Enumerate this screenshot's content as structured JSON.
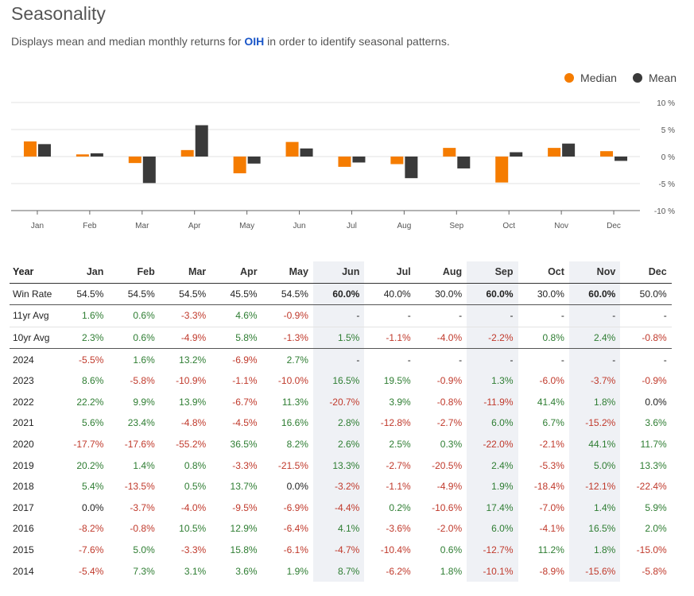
{
  "header": {
    "title": "Seasonality",
    "subtitle_prefix": "Displays mean and median monthly returns for ",
    "ticker": "OIH",
    "subtitle_suffix": " in order to identify seasonal patterns."
  },
  "legend": {
    "median_label": "Median",
    "mean_label": "Mean",
    "median_color": "#f57c00",
    "mean_color": "#3a3a3a"
  },
  "chart_data": {
    "type": "bar",
    "categories": [
      "Jan",
      "Feb",
      "Mar",
      "Apr",
      "May",
      "Jun",
      "Jul",
      "Aug",
      "Sep",
      "Oct",
      "Nov",
      "Dec"
    ],
    "series": [
      {
        "name": "Median",
        "color": "#f57c00",
        "values": [
          2.8,
          0.4,
          -1.2,
          1.2,
          -3.1,
          2.7,
          -1.9,
          -1.4,
          1.6,
          -4.8,
          1.6,
          1.0
        ]
      },
      {
        "name": "Mean",
        "color": "#3a3a3a",
        "values": [
          2.3,
          0.6,
          -4.9,
          5.8,
          -1.3,
          1.5,
          -1.1,
          -4.0,
          -2.2,
          0.8,
          2.4,
          -0.8
        ]
      }
    ],
    "y_ticks": [
      "10 %",
      "5 %",
      "0 %",
      "-5 %",
      "-10 %"
    ],
    "y_tick_values": [
      10,
      5,
      0,
      -5,
      -10
    ],
    "ylim": [
      -10,
      10
    ],
    "grid": true,
    "legend_position": "top-right"
  },
  "table": {
    "columns": [
      "Year",
      "Jan",
      "Feb",
      "Mar",
      "Apr",
      "May",
      "Jun",
      "Jul",
      "Aug",
      "Sep",
      "Oct",
      "Nov",
      "Dec"
    ],
    "highlight_columns": [
      "Jun",
      "Sep",
      "Nov"
    ],
    "summary_rows": [
      {
        "label": "Win Rate",
        "values": [
          "54.5%",
          "54.5%",
          "54.5%",
          "45.5%",
          "54.5%",
          "60.0%",
          "40.0%",
          "30.0%",
          "60.0%",
          "30.0%",
          "60.0%",
          "50.0%"
        ],
        "bold": [
          "Jun",
          "Sep",
          "Nov"
        ]
      },
      {
        "label": "11yr Avg",
        "values": [
          "1.6%",
          "0.6%",
          "-3.3%",
          "4.6%",
          "-0.9%",
          "-",
          "-",
          "-",
          "-",
          "-",
          "-",
          "-"
        ]
      },
      {
        "label": "10yr Avg",
        "values": [
          "2.3%",
          "0.6%",
          "-4.9%",
          "5.8%",
          "-1.3%",
          "1.5%",
          "-1.1%",
          "-4.0%",
          "-2.2%",
          "0.8%",
          "2.4%",
          "-0.8%"
        ]
      }
    ],
    "year_rows": [
      {
        "label": "2024",
        "values": [
          "-5.5%",
          "1.6%",
          "13.2%",
          "-6.9%",
          "2.7%",
          "-",
          "-",
          "-",
          "-",
          "-",
          "-",
          "-"
        ]
      },
      {
        "label": "2023",
        "values": [
          "8.6%",
          "-5.8%",
          "-10.9%",
          "-1.1%",
          "-10.0%",
          "16.5%",
          "19.5%",
          "-0.9%",
          "1.3%",
          "-6.0%",
          "-3.7%",
          "-0.9%"
        ]
      },
      {
        "label": "2022",
        "values": [
          "22.2%",
          "9.9%",
          "13.9%",
          "-6.7%",
          "11.3%",
          "-20.7%",
          "3.9%",
          "-0.8%",
          "-11.9%",
          "41.4%",
          "1.8%",
          "0.0%"
        ]
      },
      {
        "label": "2021",
        "values": [
          "5.6%",
          "23.4%",
          "-4.8%",
          "-4.5%",
          "16.6%",
          "2.8%",
          "-12.8%",
          "-2.7%",
          "6.0%",
          "6.7%",
          "-15.2%",
          "3.6%"
        ]
      },
      {
        "label": "2020",
        "values": [
          "-17.7%",
          "-17.6%",
          "-55.2%",
          "36.5%",
          "8.2%",
          "2.6%",
          "2.5%",
          "0.3%",
          "-22.0%",
          "-2.1%",
          "44.1%",
          "11.7%"
        ]
      },
      {
        "label": "2019",
        "values": [
          "20.2%",
          "1.4%",
          "0.8%",
          "-3.3%",
          "-21.5%",
          "13.3%",
          "-2.7%",
          "-20.5%",
          "2.4%",
          "-5.3%",
          "5.0%",
          "13.3%"
        ]
      },
      {
        "label": "2018",
        "values": [
          "5.4%",
          "-13.5%",
          "0.5%",
          "13.7%",
          "0.0%",
          "-3.2%",
          "-1.1%",
          "-4.9%",
          "1.9%",
          "-18.4%",
          "-12.1%",
          "-22.4%"
        ]
      },
      {
        "label": "2017",
        "values": [
          "0.0%",
          "-3.7%",
          "-4.0%",
          "-9.5%",
          "-6.9%",
          "-4.4%",
          "0.2%",
          "-10.6%",
          "17.4%",
          "-7.0%",
          "1.4%",
          "5.9%"
        ]
      },
      {
        "label": "2016",
        "values": [
          "-8.2%",
          "-0.8%",
          "10.5%",
          "12.9%",
          "-6.4%",
          "4.1%",
          "-3.6%",
          "-2.0%",
          "6.0%",
          "-4.1%",
          "16.5%",
          "2.0%"
        ]
      },
      {
        "label": "2015",
        "values": [
          "-7.6%",
          "5.0%",
          "-3.3%",
          "15.8%",
          "-6.1%",
          "-4.7%",
          "-10.4%",
          "0.6%",
          "-12.7%",
          "11.2%",
          "1.8%",
          "-15.0%"
        ]
      },
      {
        "label": "2014",
        "values": [
          "-5.4%",
          "7.3%",
          "3.1%",
          "3.6%",
          "1.9%",
          "8.7%",
          "-6.2%",
          "1.8%",
          "-10.1%",
          "-8.9%",
          "-15.6%",
          "-5.8%"
        ]
      }
    ]
  }
}
